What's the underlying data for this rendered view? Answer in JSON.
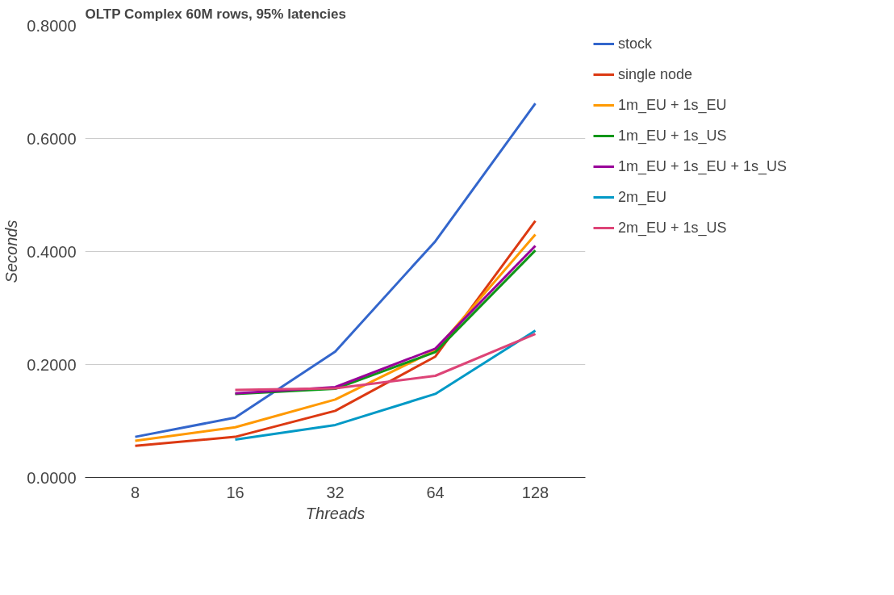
{
  "chart_data": {
    "type": "line",
    "title": "OLTP Complex 60M rows, 95% latencies",
    "xlabel": "Threads",
    "ylabel": "Seconds",
    "categories": [
      "8",
      "16",
      "32",
      "64",
      "128"
    ],
    "series": [
      {
        "name": "stock",
        "color": "#3366cc",
        "values": [
          0.072,
          0.106,
          0.223,
          0.418,
          0.662
        ]
      },
      {
        "name": "single node",
        "color": "#dc3912",
        "values": [
          0.056,
          0.072,
          0.118,
          0.214,
          0.454
        ]
      },
      {
        "name": "1m_EU + 1s_EU",
        "color": "#ff9900",
        "values": [
          0.065,
          0.089,
          0.138,
          0.225,
          0.43
        ]
      },
      {
        "name": "1m_EU + 1s_US",
        "color": "#109618",
        "values": [
          null,
          0.148,
          0.157,
          0.222,
          0.402
        ]
      },
      {
        "name": "1m_EU + 1s_EU + 1s_US",
        "color": "#990099",
        "values": [
          null,
          0.149,
          0.16,
          0.228,
          0.41
        ]
      },
      {
        "name": "2m_EU",
        "color": "#0099c6",
        "values": [
          null,
          0.067,
          0.093,
          0.148,
          0.26
        ]
      },
      {
        "name": "2m_EU + 1s_US",
        "color": "#dd4477",
        "values": [
          null,
          0.155,
          0.158,
          0.18,
          0.254
        ]
      }
    ],
    "ylim": [
      0,
      0.8
    ],
    "yticks": [
      {
        "value": 0,
        "label": "0.0000"
      },
      {
        "value": 0.2,
        "label": "0.2000"
      },
      {
        "value": 0.4,
        "label": "0.4000"
      },
      {
        "value": 0.6,
        "label": "0.6000"
      },
      {
        "value": 0.8,
        "label": "0.8000"
      }
    ],
    "grid": "y",
    "legend": "right",
    "marker": "none",
    "line_style": "solid"
  }
}
